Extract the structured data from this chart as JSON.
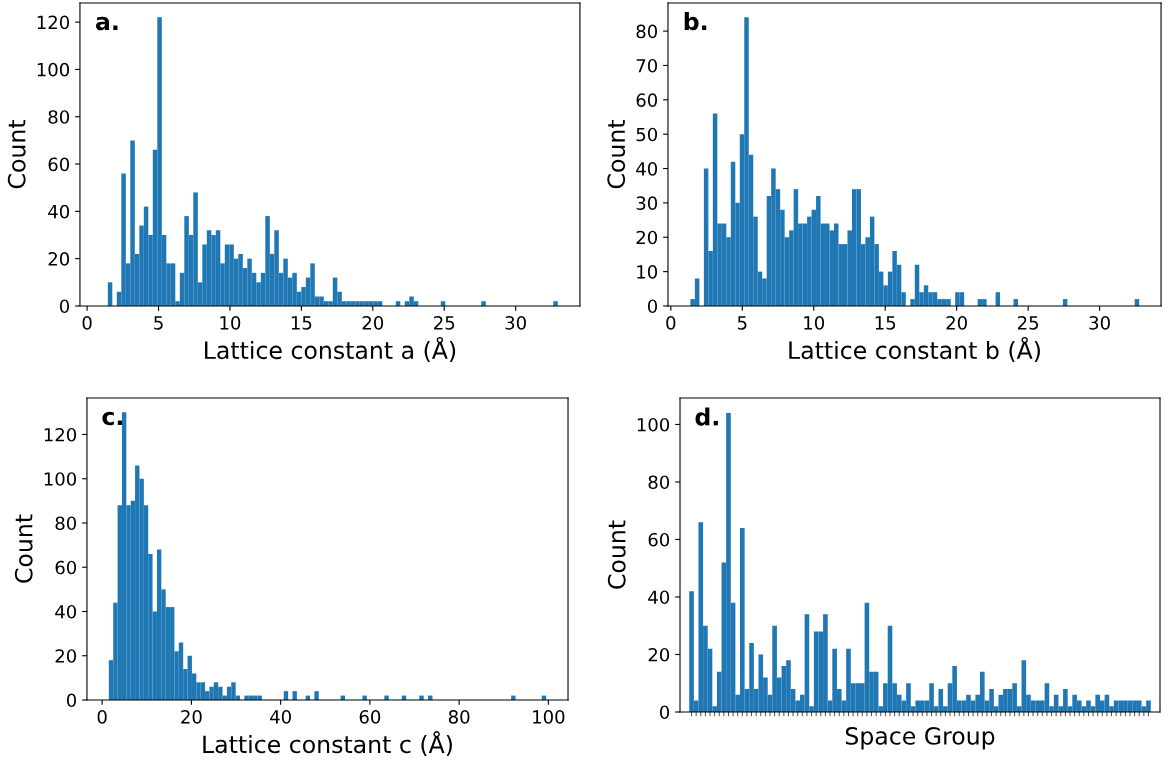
{
  "chart_data": [
    {
      "type": "histogram",
      "title": "a.",
      "xlabel": "Lattice constant a (Å)",
      "ylabel": "Count",
      "color": "#1f77b4",
      "bins": [
        1.45,
        1.765,
        2.08,
        2.395,
        2.71,
        3.025,
        3.34,
        3.655,
        3.97,
        4.285,
        4.6,
        4.915,
        5.23,
        5.545,
        5.86,
        6.175,
        6.49,
        6.805,
        7.12,
        7.435,
        7.75,
        8.065,
        8.38,
        8.695,
        9.01,
        9.325,
        9.64,
        9.955,
        10.27,
        10.585,
        10.9,
        11.215,
        11.53,
        11.845,
        12.16,
        12.475,
        12.79,
        13.105,
        13.42,
        13.735,
        14.05,
        14.365,
        14.68,
        14.995,
        15.31,
        15.625,
        15.94,
        16.255,
        16.57,
        16.885,
        17.2,
        17.515,
        17.83,
        18.145,
        18.46,
        18.775,
        19.09,
        19.405,
        19.72,
        20.035,
        20.35,
        20.665,
        20.98,
        21.295,
        21.61,
        21.925,
        22.24,
        22.555,
        22.87,
        23.185,
        23.5,
        23.815,
        24.13,
        24.445,
        24.76,
        25.075,
        25.39,
        25.705,
        26.02,
        26.335,
        26.65,
        26.965,
        27.28,
        27.595,
        27.91,
        28.225,
        28.54,
        28.855,
        29.17,
        29.485,
        29.8,
        30.115,
        30.43,
        30.745,
        31.06,
        31.375,
        31.69,
        32.005,
        32.32,
        32.635,
        32.95
      ],
      "values": [
        10,
        0,
        6,
        56,
        18,
        70,
        22,
        34,
        42,
        30,
        66,
        122,
        30,
        18,
        18,
        2,
        14,
        38,
        30,
        48,
        10,
        26,
        32,
        30,
        32,
        18,
        26,
        26,
        20,
        22,
        16,
        20,
        14,
        10,
        14,
        38,
        22,
        32,
        14,
        20,
        12,
        14,
        6,
        8,
        12,
        18,
        4,
        4,
        2,
        2,
        12,
        6,
        2,
        2,
        2,
        2,
        2,
        2,
        2,
        2,
        2,
        0,
        0,
        0,
        2,
        0,
        2,
        4,
        2,
        0,
        0,
        0,
        0,
        0,
        2,
        0,
        0,
        0,
        0,
        0,
        0,
        0,
        0,
        2,
        0,
        0,
        0,
        0,
        0,
        0,
        0,
        0,
        0,
        0,
        0,
        0,
        0,
        0,
        0,
        2
      ],
      "xlim": [
        -0.5,
        34.5
      ],
      "xticks": [
        0,
        5,
        10,
        15,
        20,
        25,
        30
      ],
      "ylim": [
        0,
        128.1
      ],
      "yticks": [
        0,
        20,
        40,
        60,
        80,
        100,
        120
      ]
    },
    {
      "type": "histogram",
      "title": "b.",
      "xlabel": "Lattice constant b (Å)",
      "ylabel": "Count",
      "color": "#1f77b4",
      "bins": [
        1.37,
        1.684,
        1.998,
        2.312,
        2.626,
        2.94,
        3.254,
        3.568,
        3.882,
        4.196,
        4.51,
        4.824,
        5.138,
        5.452,
        5.766,
        6.08,
        6.394,
        6.708,
        7.022,
        7.336,
        7.65,
        7.964,
        8.278,
        8.592,
        8.906,
        9.22,
        9.534,
        9.848,
        10.162,
        10.476,
        10.79,
        11.104,
        11.418,
        11.732,
        12.046,
        12.36,
        12.674,
        12.988,
        13.302,
        13.616,
        13.93,
        14.244,
        14.558,
        14.872,
        15.186,
        15.5,
        15.814,
        16.128,
        16.442,
        16.756,
        17.07,
        17.384,
        17.698,
        18.012,
        18.326,
        18.64,
        18.954,
        19.268,
        19.582,
        19.896,
        20.21,
        20.524,
        20.838,
        21.152,
        21.466,
        21.78,
        22.094,
        22.408,
        22.722,
        23.036,
        23.35,
        23.664,
        23.978,
        24.292,
        24.606,
        24.92,
        25.234,
        25.548,
        25.862,
        26.176,
        26.49,
        26.804,
        27.118,
        27.432,
        27.746,
        28.06,
        28.374,
        28.688,
        29.002,
        29.316,
        29.63,
        29.944,
        30.258,
        30.572,
        30.886,
        31.2,
        31.514,
        31.828,
        32.142,
        32.456,
        32.77
      ],
      "values": [
        2,
        8,
        0,
        40,
        16,
        56,
        24,
        24,
        20,
        42,
        30,
        50,
        84,
        44,
        26,
        10,
        8,
        32,
        40,
        34,
        28,
        20,
        22,
        34,
        24,
        24,
        26,
        28,
        32,
        24,
        24,
        22,
        24,
        18,
        18,
        22,
        34,
        34,
        18,
        20,
        26,
        18,
        10,
        6,
        10,
        16,
        12,
        4,
        0,
        2,
        12,
        4,
        6,
        4,
        4,
        2,
        2,
        2,
        0,
        4,
        4,
        0,
        0,
        0,
        2,
        2,
        0,
        0,
        4,
        0,
        0,
        0,
        2,
        0,
        0,
        0,
        0,
        0,
        0,
        0,
        0,
        0,
        0,
        2,
        0,
        0,
        0,
        0,
        0,
        0,
        0,
        0,
        0,
        0,
        0,
        0,
        0,
        0,
        0,
        2
      ],
      "xlim": [
        -0.2,
        34.3
      ],
      "xticks": [
        0,
        5,
        10,
        15,
        20,
        25,
        30
      ],
      "ylim": [
        0,
        88.2
      ],
      "yticks": [
        0,
        10,
        20,
        30,
        40,
        50,
        60,
        70,
        80
      ]
    },
    {
      "type": "histogram",
      "title": "c.",
      "xlabel": "Lattice constant c (Å)",
      "ylabel": "Count",
      "color": "#1f77b4",
      "bins": [
        1.5,
        2.48,
        3.46,
        4.44,
        5.42,
        6.4,
        7.38,
        8.36,
        9.34,
        10.32,
        11.3,
        12.28,
        13.26,
        14.24,
        15.22,
        16.2,
        17.18,
        18.16,
        19.14,
        20.12,
        21.1,
        22.08,
        23.06,
        24.04,
        25.02,
        26,
        26.98,
        27.96,
        28.94,
        29.92,
        30.9,
        31.88,
        32.86,
        33.84,
        34.82,
        35.8,
        36.78,
        37.76,
        38.74,
        39.72,
        40.7,
        41.68,
        42.66,
        43.64,
        44.62,
        45.6,
        46.58,
        47.56,
        48.54,
        49.52,
        50.5,
        51.48,
        52.46,
        53.44,
        54.42,
        55.4,
        56.38,
        57.36,
        58.34,
        59.32,
        60.3,
        61.28,
        62.26,
        63.24,
        64.22,
        65.2,
        66.18,
        67.16,
        68.14,
        69.12,
        70.1,
        71.08,
        72.06,
        73.04,
        74.02,
        75,
        75.98,
        76.96,
        77.94,
        78.92,
        79.9,
        80.88,
        81.86,
        82.84,
        83.82,
        84.8,
        85.78,
        86.76,
        87.74,
        88.72,
        89.7,
        90.68,
        91.66,
        92.64,
        93.62,
        94.6,
        95.58,
        96.56,
        97.54,
        98.52,
        99.5
      ],
      "values": [
        18,
        44,
        88,
        130,
        88,
        90,
        106,
        100,
        88,
        66,
        40,
        68,
        50,
        42,
        42,
        22,
        26,
        14,
        20,
        12,
        8,
        8,
        4,
        6,
        8,
        6,
        2,
        6,
        8,
        2,
        0,
        2,
        2,
        2,
        2,
        0,
        0,
        0,
        0,
        0,
        4,
        0,
        4,
        0,
        0,
        2,
        0,
        4,
        0,
        0,
        0,
        0,
        0,
        2,
        0,
        0,
        0,
        0,
        2,
        0,
        0,
        0,
        0,
        2,
        0,
        0,
        0,
        2,
        0,
        0,
        0,
        2,
        0,
        2,
        0,
        0,
        0,
        0,
        0,
        0,
        0,
        0,
        0,
        0,
        0,
        0,
        0,
        0,
        0,
        0,
        0,
        0,
        2,
        0,
        0,
        0,
        0,
        0,
        0,
        2
      ],
      "xlim": [
        -3.4,
        104.4
      ],
      "xticks": [
        0,
        20,
        40,
        60,
        80,
        100
      ],
      "ylim": [
        0,
        136.5
      ],
      "yticks": [
        0,
        20,
        40,
        60,
        80,
        100,
        120
      ]
    },
    {
      "type": "bar",
      "title": "d.",
      "xlabel": "Space Group",
      "ylabel": "Count",
      "color": "#1f77b4",
      "categories": [
        null,
        null,
        null,
        null,
        null,
        null,
        null,
        null,
        null,
        null,
        null,
        null,
        null,
        null,
        null,
        null,
        null,
        null,
        null,
        null,
        null,
        null,
        null,
        null,
        null,
        null,
        null,
        null,
        null,
        null,
        null,
        null,
        null,
        null,
        null,
        null,
        null,
        null,
        null,
        null,
        null,
        null,
        null,
        null,
        null,
        null,
        null,
        null,
        null,
        null,
        null,
        null,
        null,
        null,
        null,
        null,
        null,
        null,
        null,
        null,
        null,
        null,
        null,
        null,
        null,
        null,
        null,
        null,
        null,
        null,
        null,
        null,
        null,
        null,
        null,
        null,
        null,
        null,
        null,
        null,
        null,
        null,
        null,
        null,
        null,
        null,
        null,
        null,
        null,
        null,
        null,
        null,
        null,
        null,
        null,
        null,
        null,
        null,
        null,
        null
      ],
      "values": [
        42,
        4,
        66,
        30,
        22,
        2,
        14,
        52,
        104,
        38,
        6,
        64,
        8,
        24,
        8,
        20,
        12,
        6,
        30,
        12,
        16,
        18,
        8,
        4,
        6,
        34,
        2,
        28,
        28,
        34,
        4,
        22,
        8,
        4,
        22,
        10,
        10,
        10,
        38,
        14,
        14,
        2,
        10,
        30,
        10,
        6,
        4,
        10,
        2,
        4,
        4,
        4,
        10,
        2,
        8,
        2,
        10,
        16,
        4,
        4,
        6,
        4,
        6,
        14,
        4,
        8,
        2,
        6,
        8,
        8,
        10,
        2,
        18,
        6,
        4,
        4,
        4,
        10,
        2,
        6,
        2,
        8,
        2,
        6,
        4,
        2,
        4,
        2,
        6,
        4,
        6,
        2,
        4,
        4,
        4,
        4,
        4,
        4,
        2,
        4
      ],
      "ylim": [
        0,
        109.2
      ],
      "yticks": [
        0,
        20,
        40,
        60,
        80,
        100
      ]
    }
  ]
}
